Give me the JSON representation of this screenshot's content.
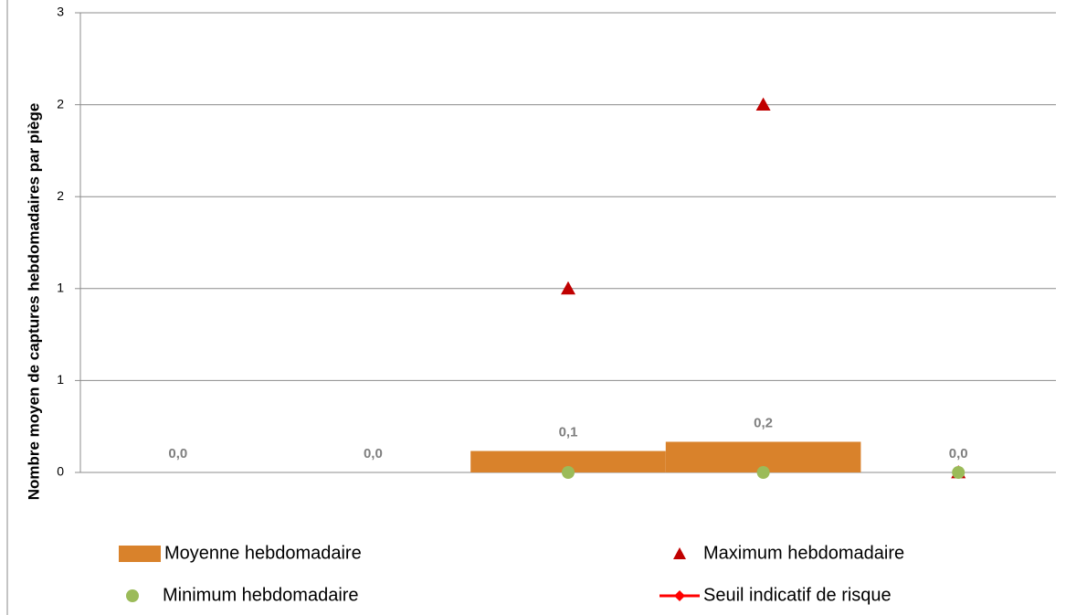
{
  "chart_data": {
    "type": "combo",
    "y_label": "Nombre moyen de captures hebdomadaires par piège",
    "categories": [
      null,
      null,
      null,
      null,
      null
    ],
    "ylim": [
      0,
      3
    ],
    "yticks": [
      0,
      {
        "value": 0.6,
        "label": "1"
      },
      {
        "value": 1.2,
        "label": "1"
      },
      {
        "value": 1.8,
        "label": "2"
      },
      {
        "value": 2.4,
        "label": "2"
      },
      3
    ],
    "grid": true,
    "series": [
      {
        "name": "Moyenne hebdomadaire",
        "type": "bar",
        "color": "#d9822b",
        "values": [
          0,
          0,
          0.14,
          0.2,
          0
        ],
        "value_labels": [
          "0,0",
          "0,0",
          "0,1",
          "0,2",
          "0,0"
        ]
      },
      {
        "name": "Maximum hebdomadaire",
        "type": "scatter",
        "marker": "triangle",
        "color": "#c00000",
        "values": [
          null,
          null,
          1.2,
          2.4,
          0
        ]
      },
      {
        "name": "Minimum hebdomadaire",
        "type": "scatter",
        "marker": "circle",
        "color": "#9bbb59",
        "values": [
          null,
          null,
          0,
          0,
          0
        ]
      },
      {
        "name": "Seuil indicatif de risque",
        "type": "line",
        "marker": "diamond",
        "color": "#ff0000",
        "values": [
          null,
          null,
          null,
          null,
          null
        ]
      }
    ]
  }
}
